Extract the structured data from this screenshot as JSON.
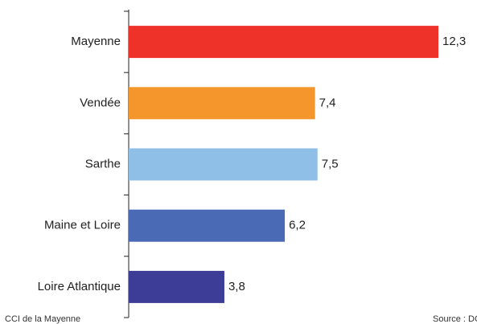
{
  "chart_data": {
    "type": "bar",
    "orientation": "horizontal",
    "categories": [
      "Mayenne",
      "Vendée",
      "Sarthe",
      "Maine et Loire",
      "Loire Atlantique"
    ],
    "values": [
      12.3,
      7.4,
      7.5,
      6.2,
      3.8
    ],
    "value_labels": [
      "12,3",
      "7,4",
      "7,5",
      "6,2",
      "3,8"
    ],
    "colors": [
      "#ee3129",
      "#f4962c",
      "#8fbfe6",
      "#4a6ab5",
      "#3d3c97"
    ],
    "xlim": [
      0,
      12.3
    ],
    "footer_left": "CCI de la Mayenne",
    "footer_right": "Source : DGC"
  }
}
